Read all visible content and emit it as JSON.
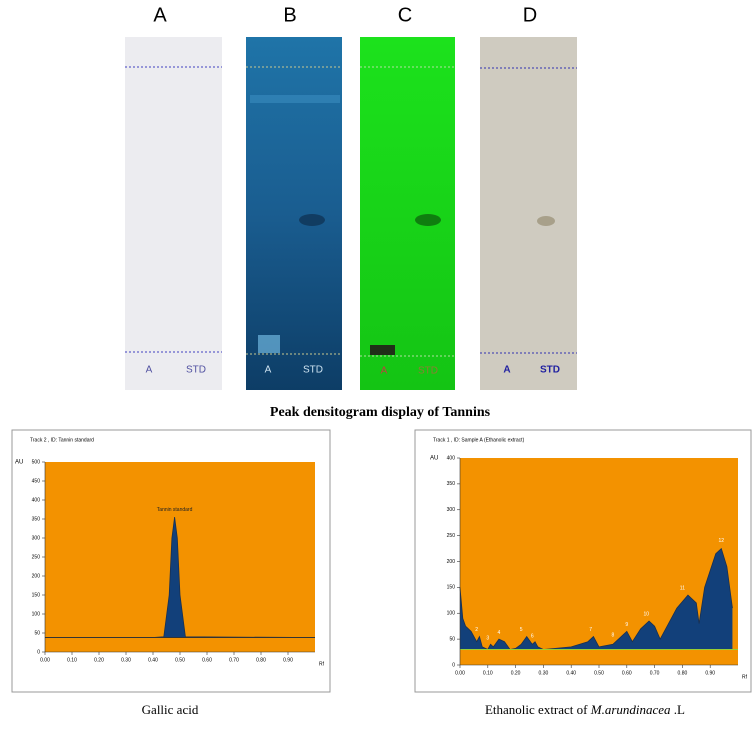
{
  "panel_labels": [
    "A",
    "B",
    "C",
    "D"
  ],
  "plates": [
    {
      "lanes": [
        "A",
        "STD"
      ]
    },
    {
      "lanes": [
        "A",
        "STD"
      ]
    },
    {
      "lanes": [
        "A",
        "STD"
      ]
    },
    {
      "lanes": [
        "A",
        "STD"
      ]
    }
  ],
  "section_title": "Peak densitogram display of Tannins",
  "chart_data": [
    {
      "type": "area",
      "title": "Track 2 , ID: Tannin standard",
      "y_label": "AU",
      "x_label": "Rf",
      "color": "#12407a",
      "background": "#f39200",
      "x": [
        0.0,
        0.4,
        0.44,
        0.46,
        0.47,
        0.48,
        0.49,
        0.5,
        0.52,
        0.99
      ],
      "values": [
        38,
        38,
        40,
        150,
        300,
        355,
        300,
        150,
        40,
        38
      ],
      "baseline": 38,
      "annotations": [
        {
          "x": 0.48,
          "y": 375,
          "text": "Tannin standard"
        }
      ],
      "xlim": [
        0,
        1.0
      ],
      "xticks": [
        {
          "value": 0,
          "label": "0.00"
        },
        {
          "value": 0.1,
          "label": "0.10"
        },
        {
          "value": 0.2,
          "label": "0.20"
        },
        {
          "value": 0.3,
          "label": "0.30"
        },
        {
          "value": 0.4,
          "label": "0.40"
        },
        {
          "value": 0.5,
          "label": "0.50"
        },
        {
          "value": 0.6,
          "label": "0.60"
        },
        {
          "value": 0.7,
          "label": "0.70"
        },
        {
          "value": 0.8,
          "label": "0.80"
        },
        {
          "value": 0.9,
          "label": "0.90"
        }
      ],
      "ylim": [
        0,
        500
      ],
      "yticks": [
        0,
        50,
        100,
        150,
        200,
        250,
        300,
        350,
        400,
        450,
        500
      ],
      "caption": [
        "Gallic acid"
      ]
    },
    {
      "type": "area",
      "title": "Track 1 , ID: Sample A (Ethanolic extract)",
      "y_label": "AU",
      "x_label": "Rf",
      "color": "#12407a",
      "background": "#f39200",
      "x": [
        0.0,
        0.01,
        0.02,
        0.04,
        0.06,
        0.07,
        0.08,
        0.1,
        0.11,
        0.12,
        0.14,
        0.16,
        0.18,
        0.2,
        0.22,
        0.24,
        0.26,
        0.27,
        0.28,
        0.3,
        0.4,
        0.46,
        0.48,
        0.5,
        0.55,
        0.58,
        0.6,
        0.62,
        0.65,
        0.68,
        0.7,
        0.72,
        0.78,
        0.82,
        0.85,
        0.86,
        0.88,
        0.92,
        0.94,
        0.96,
        0.98
      ],
      "values": [
        150,
        90,
        75,
        65,
        45,
        55,
        35,
        30,
        40,
        35,
        50,
        45,
        30,
        32,
        40,
        55,
        40,
        45,
        35,
        30,
        35,
        45,
        55,
        35,
        40,
        55,
        65,
        45,
        70,
        85,
        75,
        50,
        110,
        135,
        120,
        80,
        150,
        215,
        225,
        190,
        110
      ],
      "baseline": 30,
      "annotations": [
        {
          "x": 0.06,
          "y": 68,
          "text": "2"
        },
        {
          "x": 0.1,
          "y": 52,
          "text": "3"
        },
        {
          "x": 0.14,
          "y": 62,
          "text": "4"
        },
        {
          "x": 0.22,
          "y": 68,
          "text": "5"
        },
        {
          "x": 0.26,
          "y": 56,
          "text": "6"
        },
        {
          "x": 0.47,
          "y": 68,
          "text": "7"
        },
        {
          "x": 0.55,
          "y": 58,
          "text": "8"
        },
        {
          "x": 0.6,
          "y": 78,
          "text": "9"
        },
        {
          "x": 0.67,
          "y": 98,
          "text": "10"
        },
        {
          "x": 0.8,
          "y": 148,
          "text": "11"
        },
        {
          "x": 0.94,
          "y": 240,
          "text": "12"
        }
      ],
      "xlim": [
        0,
        1.0
      ],
      "xticks": [
        {
          "value": 0,
          "label": "0.00"
        },
        {
          "value": 0.1,
          "label": "0.10"
        },
        {
          "value": 0.2,
          "label": "0.20"
        },
        {
          "value": 0.3,
          "label": "0.30"
        },
        {
          "value": 0.4,
          "label": "0.40"
        },
        {
          "value": 0.5,
          "label": "0.50"
        },
        {
          "value": 0.6,
          "label": "0.60"
        },
        {
          "value": 0.7,
          "label": "0.70"
        },
        {
          "value": 0.8,
          "label": "0.80"
        },
        {
          "value": 0.9,
          "label": "0.90"
        }
      ],
      "ylim": [
        0,
        400
      ],
      "yticks": [
        0,
        50,
        100,
        150,
        200,
        250,
        300,
        350,
        400
      ],
      "caption": [
        "Ethanolic extract of ",
        "M.arundinacea",
        " .L"
      ]
    }
  ]
}
